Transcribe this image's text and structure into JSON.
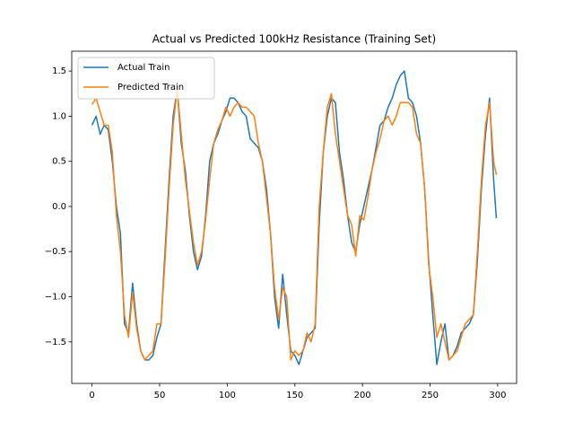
{
  "chart_data": {
    "type": "line",
    "title": "Actual vs Predicted 100kHz Resistance (Training Set)",
    "x": [
      0,
      3,
      6,
      9,
      12,
      15,
      18,
      21,
      24,
      27,
      30,
      33,
      36,
      39,
      42,
      45,
      48,
      51,
      54,
      57,
      60,
      63,
      66,
      69,
      72,
      75,
      78,
      81,
      84,
      87,
      90,
      93,
      96,
      99,
      102,
      105,
      108,
      111,
      114,
      117,
      120,
      123,
      126,
      129,
      132,
      135,
      138,
      141,
      144,
      147,
      150,
      153,
      156,
      159,
      162,
      165,
      168,
      171,
      174,
      177,
      180,
      183,
      186,
      189,
      192,
      195,
      198,
      201,
      204,
      207,
      210,
      213,
      216,
      219,
      222,
      225,
      228,
      231,
      234,
      237,
      240,
      243,
      246,
      249,
      252,
      255,
      258,
      261,
      264,
      267,
      270,
      273,
      276,
      279,
      282,
      285,
      288,
      291,
      294,
      297,
      299
    ],
    "series": [
      {
        "name": "Actual Train",
        "color": "#1f77b4",
        "values": [
          0.9,
          1.0,
          0.8,
          0.9,
          0.85,
          0.5,
          0.0,
          -0.3,
          -1.3,
          -1.4,
          -0.85,
          -1.3,
          -1.6,
          -1.7,
          -1.7,
          -1.65,
          -1.45,
          -1.3,
          -0.5,
          0.3,
          1.0,
          1.3,
          0.7,
          0.4,
          -0.1,
          -0.5,
          -0.7,
          -0.55,
          -0.1,
          0.5,
          0.7,
          0.8,
          0.95,
          1.05,
          1.2,
          1.2,
          1.15,
          1.05,
          1.0,
          0.75,
          0.7,
          0.65,
          0.5,
          0.2,
          -0.3,
          -1.0,
          -1.35,
          -0.75,
          -1.2,
          -1.6,
          -1.65,
          -1.75,
          -1.6,
          -1.45,
          -1.4,
          -1.35,
          -0.2,
          0.6,
          1.0,
          1.2,
          1.15,
          0.6,
          0.3,
          -0.1,
          -0.4,
          -0.5,
          -0.2,
          0.0,
          0.2,
          0.4,
          0.65,
          0.9,
          0.95,
          1.1,
          1.2,
          1.35,
          1.45,
          1.5,
          1.2,
          1.15,
          1.0,
          0.7,
          0.2,
          -0.6,
          -1.2,
          -1.75,
          -1.5,
          -1.3,
          -1.7,
          -1.65,
          -1.55,
          -1.4,
          -1.35,
          -1.3,
          -1.2,
          -0.6,
          0.2,
          0.8,
          1.2,
          0.3,
          -0.13
        ]
      },
      {
        "name": "Predicted Train",
        "color": "#ff7f0e",
        "values": [
          1.13,
          1.2,
          1.05,
          0.9,
          0.9,
          0.6,
          -0.1,
          -0.5,
          -1.2,
          -1.45,
          -0.95,
          -1.35,
          -1.6,
          -1.7,
          -1.65,
          -1.6,
          -1.3,
          -1.3,
          -0.6,
          0.2,
          0.9,
          1.3,
          0.8,
          0.3,
          -0.05,
          -0.4,
          -0.65,
          -0.5,
          -0.15,
          0.3,
          0.7,
          0.85,
          0.95,
          1.1,
          1.0,
          1.1,
          1.15,
          1.1,
          1.1,
          1.05,
          1.0,
          0.7,
          0.5,
          0.1,
          -0.3,
          -0.9,
          -1.25,
          -0.9,
          -1.0,
          -1.7,
          -1.6,
          -1.65,
          -1.6,
          -1.4,
          -1.5,
          -1.3,
          0.0,
          0.6,
          1.1,
          1.25,
          0.8,
          0.5,
          0.2,
          -0.1,
          -0.2,
          -0.55,
          -0.1,
          -0.15,
          0.1,
          0.4,
          0.6,
          0.75,
          0.95,
          1.0,
          0.9,
          1.0,
          1.15,
          1.15,
          1.15,
          1.1,
          0.8,
          0.7,
          0.2,
          -0.65,
          -1.0,
          -1.45,
          -1.3,
          -1.5,
          -1.7,
          -1.65,
          -1.6,
          -1.45,
          -1.3,
          -1.25,
          -1.2,
          -0.5,
          0.3,
          0.9,
          1.15,
          0.5,
          0.35
        ]
      }
    ],
    "xlim": [
      -15,
      314
    ],
    "ylim": [
      -1.96,
      1.72
    ],
    "xticks": [
      0,
      50,
      100,
      150,
      200,
      250,
      300
    ],
    "yticks": [
      {
        "value": -1.5,
        "label": "−1.5"
      },
      {
        "value": -1.0,
        "label": "−1.0"
      },
      {
        "value": -0.5,
        "label": "−0.5"
      },
      {
        "value": 0,
        "label": "0.0"
      },
      {
        "value": 0.5,
        "label": "0.5"
      },
      {
        "value": 1.0,
        "label": "1.0"
      },
      {
        "value": 1.5,
        "label": "1.5"
      }
    ],
    "legend": "upper left",
    "grid": false
  }
}
